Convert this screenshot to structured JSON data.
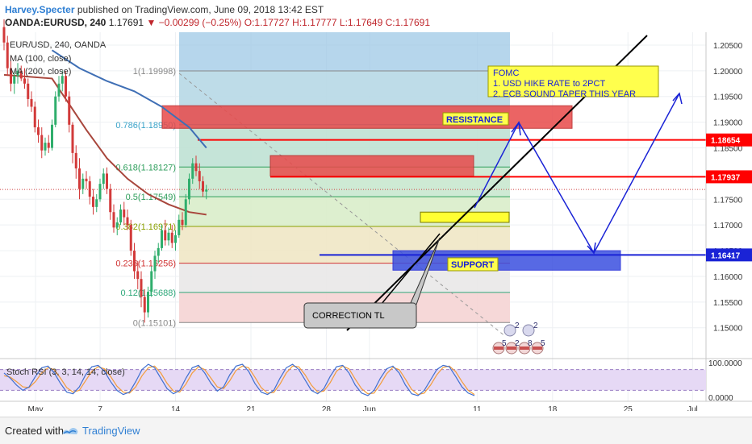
{
  "header": {
    "author": "Harvey.Specter",
    "published": "published on TradingView.com, June 09, 2018 13:42 EST",
    "symbol": "OANDA:EURUSD, 240",
    "last": "1.17691",
    "change": "−0.00299 (−0.25%)",
    "open": "O:1.17727",
    "high": "H:1.17777",
    "low": "L:1.17649",
    "close": "C:1.17691"
  },
  "legend": {
    "symbol_line": "EUR/USD, 240, OANDA",
    "ma100": "MA (100, close)",
    "ma200": "MA (200, close)"
  },
  "price_axis": [
    {
      "label": "1.20500",
      "value": 1.205
    },
    {
      "label": "1.20000",
      "value": 1.2
    },
    {
      "label": "1.19500",
      "value": 1.195
    },
    {
      "label": "1.19000",
      "value": 1.19
    },
    {
      "label": "1.18500",
      "value": 1.185
    },
    {
      "label": "1.17500",
      "value": 1.175
    },
    {
      "label": "1.17000",
      "value": 1.17
    },
    {
      "label": "1.16500",
      "value": 1.165
    },
    {
      "label": "1.16000",
      "value": 1.16
    },
    {
      "label": "1.15500",
      "value": 1.155
    },
    {
      "label": "1.15000",
      "value": 1.15
    }
  ],
  "price_tags": [
    {
      "label": "1.18654",
      "value": 1.18654,
      "color": "#ff0000"
    },
    {
      "label": "1.17937",
      "value": 1.17937,
      "color": "#ff0000"
    },
    {
      "label": "1.16417",
      "value": 1.16417,
      "color": "#1a23d6"
    }
  ],
  "time_axis": [
    {
      "label": "May",
      "day": 1
    },
    {
      "label": "7",
      "day": 7
    },
    {
      "label": "14",
      "day": 14
    },
    {
      "label": "21",
      "day": 21
    },
    {
      "label": "28",
      "day": 28
    },
    {
      "label": "Jun",
      "day": 32
    },
    {
      "label": "11",
      "day": 42
    },
    {
      "label": "18",
      "day": 49
    },
    {
      "label": "25",
      "day": 56
    },
    {
      "label": "Jul",
      "day": 62
    }
  ],
  "fibonacci": [
    {
      "ratio": "1",
      "label": "1(1.19998)",
      "value": 1.19998,
      "color": "#888888"
    },
    {
      "ratio": "0.786",
      "label": "0.786(1.18950)",
      "value": 1.1895,
      "color": "#3aa3c9"
    },
    {
      "ratio": "0.618",
      "label": "0.618(1.18127)",
      "value": 1.18127,
      "color": "#2e9e5b"
    },
    {
      "ratio": "0.5",
      "label": "0.5(1.17549)",
      "value": 1.17549,
      "color": "#2e9e5b"
    },
    {
      "ratio": "0.382",
      "label": "0.382(1.16971)",
      "value": 1.16971,
      "color": "#8aa000"
    },
    {
      "ratio": "0.236",
      "label": "0.236(1.16256)",
      "value": 1.16256,
      "color": "#d03030"
    },
    {
      "ratio": "0.12",
      "label": "0.12(1.15688)",
      "value": 1.15688,
      "color": "#2ea87a"
    },
    {
      "ratio": "0",
      "label": "0(1.15101)",
      "value": 1.15101,
      "color": "#888888"
    }
  ],
  "annotations": {
    "fomc": [
      "FOMC",
      "1. USD HIKE RATE to 2PCT",
      "2. ECB SOUND TAPER THIS YEAR"
    ],
    "resistance": "RESISTANCE",
    "support": "SUPPORT",
    "correction": "CORRECTION TL"
  },
  "events": {
    "row1": [
      "2",
      "2"
    ],
    "row2": [
      "5",
      "2",
      "8",
      "5"
    ]
  },
  "oscillator": {
    "label": "Stoch RSI (3, 3, 14, 14, close)",
    "axis": [
      {
        "label": "100.0000",
        "value": 100
      },
      {
        "label": "0.0000",
        "value": 0
      }
    ],
    "k": [
      70,
      55,
      35,
      20,
      30,
      60,
      85,
      90,
      70,
      40,
      15,
      10,
      30,
      65,
      88,
      92,
      75,
      45,
      20,
      8,
      15,
      45,
      80,
      95,
      85,
      55,
      25,
      10,
      20,
      55,
      85,
      92,
      70,
      40,
      18,
      30,
      65,
      90,
      95,
      75,
      40,
      15,
      8,
      20,
      55,
      85,
      95,
      80,
      50,
      20,
      10,
      25,
      60,
      88,
      92,
      70,
      35,
      12,
      5,
      20,
      55,
      82,
      90,
      70,
      35,
      10,
      5,
      20,
      50,
      80,
      92,
      88,
      60,
      30,
      12,
      5
    ],
    "d": [
      62,
      58,
      45,
      30,
      28,
      45,
      70,
      85,
      80,
      55,
      28,
      15,
      20,
      48,
      75,
      88,
      82,
      60,
      32,
      15,
      12,
      30,
      62,
      85,
      90,
      70,
      40,
      18,
      15,
      38,
      70,
      88,
      80,
      55,
      30,
      25,
      48,
      78,
      90,
      85,
      58,
      28,
      12,
      14,
      38,
      70,
      90,
      88,
      65,
      35,
      15,
      18,
      42,
      75,
      90,
      82,
      52,
      25,
      10,
      12,
      38,
      68,
      86,
      80,
      52,
      22,
      8,
      12,
      35,
      65,
      86,
      90,
      74,
      45,
      20,
      8
    ]
  },
  "chart_data": {
    "type": "candlestick",
    "title": "OANDA:EURUSD, 240",
    "ylim": [
      1.144,
      1.2075
    ],
    "candles": [
      [
        1.2085,
        1.21,
        1.204,
        1.2055
      ],
      [
        1.2055,
        1.2068,
        1.199,
        1.2005
      ],
      [
        1.2005,
        1.203,
        1.196,
        1.1975
      ],
      [
        1.1975,
        1.2,
        1.1955,
        1.199
      ],
      [
        1.199,
        1.2015,
        1.1975,
        1.2
      ],
      [
        1.2,
        1.201,
        1.198,
        1.1985
      ],
      [
        1.1985,
        1.2005,
        1.1965,
        1.1975
      ],
      [
        1.1975,
        1.1985,
        1.193,
        1.1945
      ],
      [
        1.1945,
        1.196,
        1.192,
        1.193
      ],
      [
        1.193,
        1.194,
        1.188,
        1.189
      ],
      [
        1.189,
        1.1905,
        1.186,
        1.1875
      ],
      [
        1.1875,
        1.189,
        1.183,
        1.1845
      ],
      [
        1.1845,
        1.187,
        1.1835,
        1.186
      ],
      [
        1.186,
        1.1875,
        1.184,
        1.185
      ],
      [
        1.185,
        1.1905,
        1.1845,
        1.1895
      ],
      [
        1.1895,
        1.196,
        1.189,
        1.195
      ],
      [
        1.195,
        1.199,
        1.194,
        1.1975
      ],
      [
        1.1975,
        1.2,
        1.196,
        1.199
      ],
      [
        1.199,
        1.2,
        1.194,
        1.195
      ],
      [
        1.195,
        1.196,
        1.188,
        1.1895
      ],
      [
        1.1895,
        1.19,
        1.182,
        1.184
      ],
      [
        1.184,
        1.1855,
        1.179,
        1.181
      ],
      [
        1.181,
        1.183,
        1.175,
        1.177
      ],
      [
        1.177,
        1.18,
        1.176,
        1.179
      ],
      [
        1.179,
        1.1805,
        1.177,
        1.1785
      ],
      [
        1.1785,
        1.1795,
        1.174,
        1.1755
      ],
      [
        1.1755,
        1.177,
        1.172,
        1.1735
      ],
      [
        1.1735,
        1.176,
        1.1725,
        1.175
      ],
      [
        1.175,
        1.179,
        1.1745,
        1.178
      ],
      [
        1.178,
        1.181,
        1.177,
        1.18
      ],
      [
        1.18,
        1.1812,
        1.176,
        1.177
      ],
      [
        1.177,
        1.178,
        1.171,
        1.1725
      ],
      [
        1.1725,
        1.174,
        1.1685,
        1.1695
      ],
      [
        1.1695,
        1.1715,
        1.168,
        1.1705
      ],
      [
        1.1705,
        1.174,
        1.17,
        1.173
      ],
      [
        1.173,
        1.1745,
        1.17,
        1.1715
      ],
      [
        1.1715,
        1.173,
        1.169,
        1.17
      ],
      [
        1.17,
        1.171,
        1.164,
        1.165
      ],
      [
        1.165,
        1.1665,
        1.1595,
        1.161
      ],
      [
        1.161,
        1.163,
        1.1575,
        1.1595
      ],
      [
        1.1595,
        1.161,
        1.154,
        1.156
      ],
      [
        1.156,
        1.1575,
        1.151,
        1.153
      ],
      [
        1.153,
        1.158,
        1.152,
        1.157
      ],
      [
        1.157,
        1.162,
        1.156,
        1.161
      ],
      [
        1.161,
        1.165,
        1.1595,
        1.164
      ],
      [
        1.164,
        1.1665,
        1.1625,
        1.1655
      ],
      [
        1.1655,
        1.17,
        1.165,
        1.169
      ],
      [
        1.169,
        1.171,
        1.166,
        1.167
      ],
      [
        1.167,
        1.1695,
        1.166,
        1.1685
      ],
      [
        1.1685,
        1.17,
        1.1655,
        1.1665
      ],
      [
        1.1665,
        1.169,
        1.165,
        1.168
      ],
      [
        1.168,
        1.172,
        1.1675,
        1.171
      ],
      [
        1.171,
        1.1725,
        1.169,
        1.17
      ],
      [
        1.17,
        1.176,
        1.1695,
        1.175
      ],
      [
        1.175,
        1.18,
        1.174,
        1.179
      ],
      [
        1.179,
        1.183,
        1.178,
        1.182
      ],
      [
        1.182,
        1.1835,
        1.1795,
        1.1805
      ],
      [
        1.1805,
        1.182,
        1.177,
        1.1785
      ],
      [
        1.1785,
        1.1795,
        1.1755,
        1.1765
      ],
      [
        1.1765,
        1.1778,
        1.175,
        1.1769
      ]
    ],
    "ma100": [
      [
        0,
        1.1992
      ],
      [
        14,
        1.1985
      ],
      [
        18,
        1.1945
      ],
      [
        24,
        1.1885
      ],
      [
        30,
        1.183
      ],
      [
        36,
        1.179
      ],
      [
        42,
        1.176
      ],
      [
        48,
        1.174
      ],
      [
        54,
        1.1725
      ],
      [
        59,
        1.172
      ]
    ],
    "ma200": [
      [
        14,
        1.204
      ],
      [
        22,
        1.2005
      ],
      [
        30,
        1.198
      ],
      [
        38,
        1.196
      ],
      [
        46,
        1.193
      ],
      [
        54,
        1.189
      ],
      [
        59,
        1.185
      ]
    ],
    "resistance_zones": [
      {
        "from": 1.1932,
        "to": 1.1888
      },
      {
        "from": 1.1835,
        "to": 1.1795
      }
    ],
    "support_zone": {
      "from": 1.165,
      "to": 1.1612
    },
    "horizontal_levels": [
      1.18654,
      1.17937,
      1.16417
    ]
  }
}
